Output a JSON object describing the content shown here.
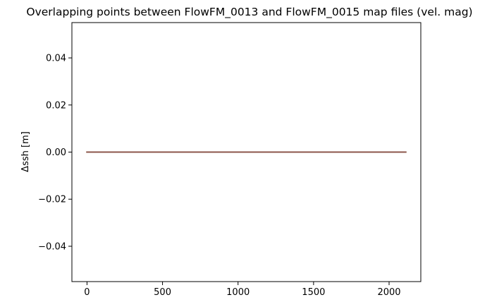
{
  "chart_data": {
    "type": "line",
    "title": "Overlapping points between FlowFM_0013 and FlowFM_0015 map files (vel. mag)",
    "xlabel": "",
    "ylabel": "Δssh [m]",
    "xlim": [
      -100,
      2210
    ],
    "ylim": [
      -0.055,
      0.055
    ],
    "x_ticks": [
      0,
      500,
      1000,
      1500,
      2000
    ],
    "x_tick_labels": [
      "0",
      "500",
      "1000",
      "1500",
      "2000"
    ],
    "y_ticks": [
      0.04,
      0.02,
      0.0,
      -0.02,
      -0.04
    ],
    "y_tick_labels": [
      "0.04",
      "0.02",
      "0.00",
      "−0.02",
      "−0.04"
    ],
    "grid": false,
    "series": [
      {
        "color": "#1f77b4",
        "x": [
          0,
          2110
        ],
        "y": [
          0,
          0
        ]
      },
      {
        "color": "#ff7f0e",
        "x": [
          0,
          2110
        ],
        "y": [
          0,
          0
        ]
      },
      {
        "color": "#2ca02c",
        "x": [
          0,
          2110
        ],
        "y": [
          0,
          0
        ]
      },
      {
        "color": "#d62728",
        "x": [
          0,
          2110
        ],
        "y": [
          0,
          0
        ]
      },
      {
        "color": "#8c564b",
        "x": [
          0,
          2110
        ],
        "y": [
          0,
          0
        ]
      }
    ]
  }
}
